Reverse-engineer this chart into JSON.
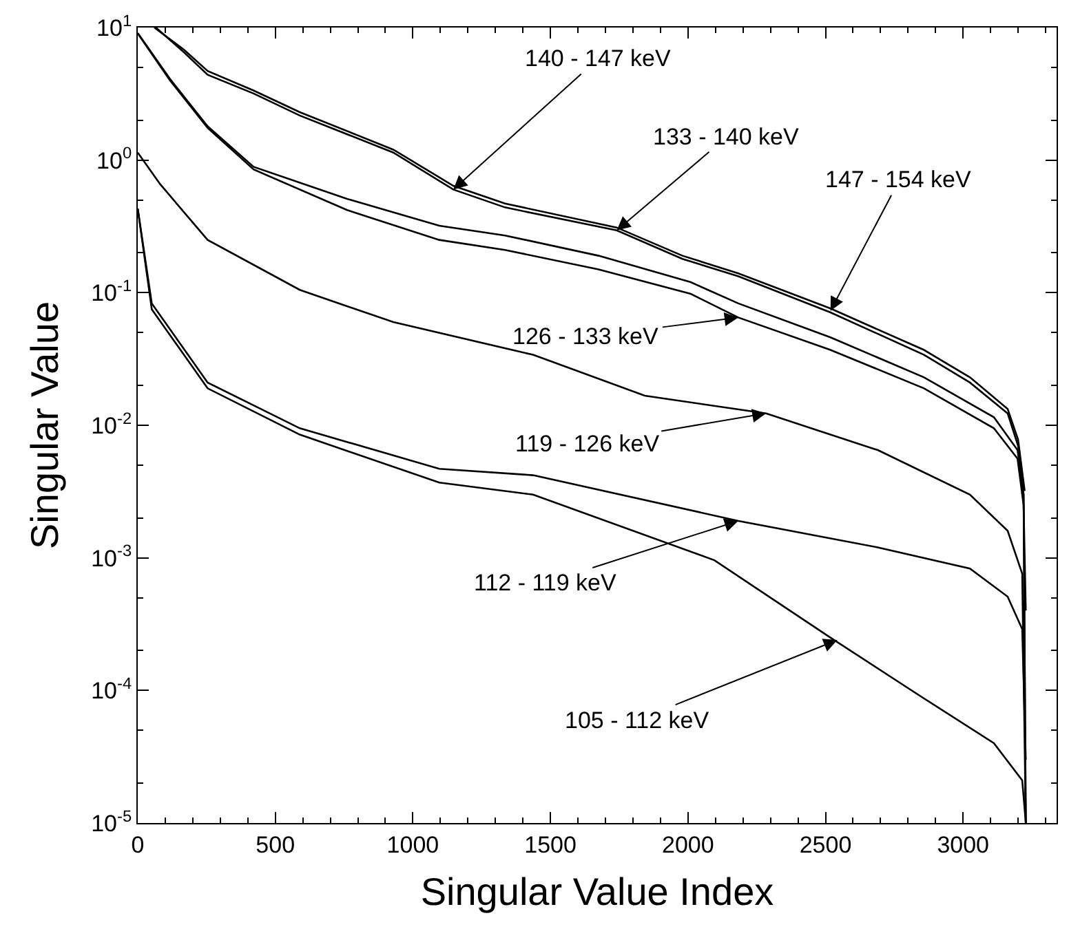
{
  "chart_data": {
    "type": "line",
    "xlabel": "Singular Value Index",
    "ylabel": "Singular Value",
    "log": "y",
    "marker": "none",
    "line_style": "solid",
    "xlim": [
      0,
      3340
    ],
    "xticks": [
      0,
      500,
      1000,
      1500,
      2000,
      2500,
      3000
    ],
    "ylim": [
      1e-05,
      10
    ],
    "yticks": [
      {
        "value": 10,
        "label": "10$^{1}$"
      },
      {
        "value": 1,
        "label": "10$^{0}$"
      },
      {
        "value": 0.1,
        "label": "10$^{-1}$"
      },
      {
        "value": 0.01,
        "label": "10$^{-2}$"
      },
      {
        "value": 0.001,
        "label": "10$^{-3}$"
      },
      {
        "value": 0.0001,
        "label": "10$^{-4}$"
      },
      {
        "value": 1e-05,
        "label": "10$^{-5}$"
      }
    ],
    "series": [
      {
        "color": "#000000",
        "x": [
          66,
          168,
          254,
          421,
          589,
          929,
          1147,
          1335,
          1741,
          1980,
          2183,
          2518,
          2858,
          3025,
          3162,
          3200,
          3220,
          3228
        ],
        "values": [
          10,
          6.5,
          4.4,
          3.18,
          2.17,
          1.14,
          0.6,
          0.44,
          0.295,
          0.18,
          0.133,
          0.071,
          0.034,
          0.021,
          0.0123,
          0.007,
          0.003,
          1e-05
        ]
      },
      {
        "color": "#000000",
        "x": [
          60,
          168,
          254,
          421,
          589,
          929,
          1147,
          1335,
          1741,
          1980,
          2183,
          2518,
          2858,
          3025,
          3162,
          3200,
          3224
        ],
        "values": [
          10,
          6.8,
          4.7,
          3.35,
          2.3,
          1.2,
          0.64,
          0.47,
          0.31,
          0.19,
          0.14,
          0.076,
          0.037,
          0.023,
          0.0133,
          0.0078,
          0.0032
        ]
      },
      {
        "color": "#000000",
        "x": [
          0,
          117,
          254,
          421,
          761,
          1096,
          1335,
          1675,
          2010,
          2183,
          2518,
          2858,
          3112,
          3198,
          3220,
          3228
        ],
        "values": [
          9.1,
          4.1,
          1.8,
          0.89,
          0.51,
          0.32,
          0.27,
          0.19,
          0.12,
          0.083,
          0.046,
          0.023,
          0.0115,
          0.0065,
          0.003,
          1e-05
        ]
      },
      {
        "color": "#000000",
        "x": [
          0,
          117,
          254,
          421,
          761,
          1096,
          1335,
          1675,
          2010,
          2183,
          2518,
          2858,
          3112,
          3198,
          3220,
          3228
        ],
        "values": [
          9,
          4.0,
          1.75,
          0.85,
          0.42,
          0.25,
          0.21,
          0.15,
          0.098,
          0.065,
          0.037,
          0.019,
          0.0095,
          0.0056,
          0.0025,
          0.0004
        ]
      },
      {
        "color": "#000000",
        "x": [
          0,
          81,
          254,
          589,
          929,
          1437,
          1843,
          2284,
          2690,
          3025,
          3162,
          3215,
          3228
        ],
        "values": [
          1.14,
          0.66,
          0.25,
          0.105,
          0.06,
          0.034,
          0.0167,
          0.0123,
          0.0065,
          0.003,
          0.0016,
          0.00076,
          1e-05
        ]
      },
      {
        "color": "#000000",
        "x": [
          0,
          51,
          254,
          589,
          1096,
          1437,
          2183,
          2690,
          3025,
          3162,
          3215,
          3228
        ],
        "values": [
          0.43,
          0.083,
          0.021,
          0.0095,
          0.0047,
          0.0042,
          0.0019,
          0.0012,
          0.00083,
          0.00051,
          0.00029,
          3e-05
        ]
      },
      {
        "color": "#000000",
        "x": [
          0,
          51,
          254,
          589,
          1096,
          1437,
          2096,
          2518,
          2858,
          3112,
          3215,
          3228
        ],
        "values": [
          0.43,
          0.075,
          0.019,
          0.0085,
          0.0037,
          0.003,
          0.00096,
          0.00025,
          8.7e-05,
          4e-05,
          2.1e-05,
          1e-05
        ]
      }
    ],
    "annotations": [
      {
        "text": "140 - 147 keV",
        "x": 1147,
        "y": 0.6
      },
      {
        "text": "133 - 140 keV",
        "x": 1741,
        "y": 0.295
      },
      {
        "text": "147 - 154 keV",
        "x": 2518,
        "y": 0.073
      },
      {
        "text": "126 - 133 keV",
        "x": 2183,
        "y": 0.065
      },
      {
        "text": "119 - 126 keV",
        "x": 2284,
        "y": 0.0123
      },
      {
        "text": "112 - 119 keV",
        "x": 2183,
        "y": 0.0019
      },
      {
        "text": "105 - 112 keV",
        "x": 2543,
        "y": 0.00024
      }
    ]
  }
}
